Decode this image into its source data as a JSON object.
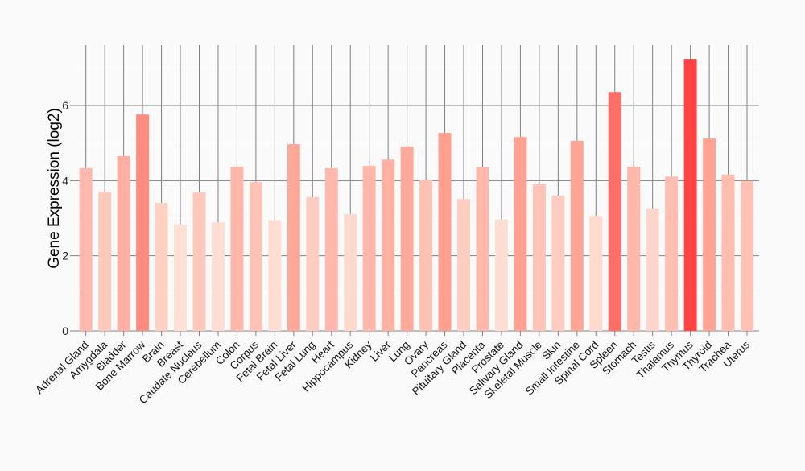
{
  "chart_data": {
    "type": "bar",
    "title": "",
    "xlabel": "",
    "ylabel": "Gene Expression (log2)",
    "ylim": [
      0,
      7.6
    ],
    "yticks": [
      0,
      2,
      4,
      6
    ],
    "grid": true,
    "categories": [
      "Adrenal Gland",
      "Amygdala",
      "Bladder",
      "Bone Marrow",
      "Brain",
      "Breast",
      "Caudate Nucleus",
      "Cerebellum",
      "Colon",
      "Corpus",
      "Fetal Brain",
      "Fetal Liver",
      "Fetal Lung",
      "Heart",
      "Hippocampus",
      "Kidney",
      "Liver",
      "Lung",
      "Ovary",
      "Pancreas",
      "Pituitary Gland",
      "Placenta",
      "Prostate",
      "Salivary Gland",
      "Skeletal Muscle",
      "Skin",
      "Small Intestine",
      "Spinal Cord",
      "Spleen",
      "Stomach",
      "Testis",
      "Thalamus",
      "Thymus",
      "Thyroid",
      "Trachea",
      "Uterus"
    ],
    "values": [
      4.33,
      3.69,
      4.65,
      5.76,
      3.41,
      2.83,
      3.69,
      2.89,
      4.37,
      3.96,
      2.94,
      4.97,
      3.56,
      4.33,
      3.11,
      4.39,
      4.56,
      4.91,
      4.01,
      5.27,
      3.51,
      4.35,
      2.96,
      5.16,
      3.9,
      3.6,
      5.06,
      3.06,
      6.36,
      4.37,
      3.26,
      4.11,
      7.24,
      5.12,
      4.16,
      3.99
    ],
    "colors": {
      "low": "#fee0d6",
      "mid": "#ff9a8a",
      "high": "#ff4444",
      "grid": "#808080",
      "background": "#fafafa"
    }
  }
}
